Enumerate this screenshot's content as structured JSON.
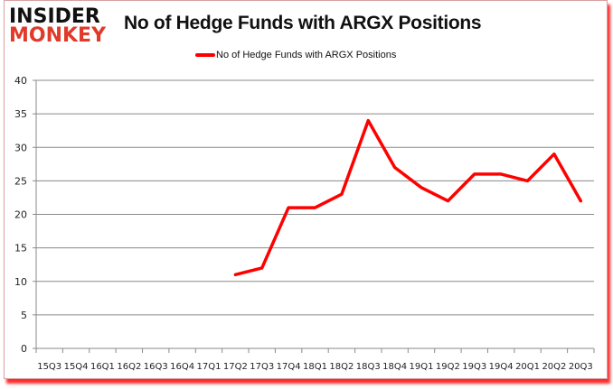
{
  "logo": {
    "line1": "INSIDER",
    "line2": "MONKEY"
  },
  "chart_data": {
    "type": "line",
    "title": "No of Hedge Funds with ARGX Positions",
    "xlabel": "",
    "ylabel": "",
    "ylim": [
      0,
      40
    ],
    "yticks": [
      0,
      5,
      10,
      15,
      20,
      25,
      30,
      35,
      40
    ],
    "grid": true,
    "legend_position": "top",
    "categories": [
      "15Q3",
      "15Q4",
      "16Q1",
      "16Q2",
      "16Q3",
      "16Q4",
      "17Q1",
      "17Q2",
      "17Q3",
      "17Q4",
      "18Q1",
      "18Q2",
      "18Q3",
      "18Q4",
      "19Q1",
      "19Q2",
      "19Q3",
      "19Q4",
      "20Q1",
      "20Q2",
      "20Q3"
    ],
    "series": [
      {
        "name": "No of Hedge Funds with ARGX Positions",
        "color": "#ff0000",
        "values": [
          null,
          null,
          null,
          null,
          null,
          null,
          null,
          11,
          12,
          21,
          21,
          23,
          34,
          27,
          24,
          22,
          26,
          26,
          25,
          29,
          22
        ]
      }
    ]
  }
}
